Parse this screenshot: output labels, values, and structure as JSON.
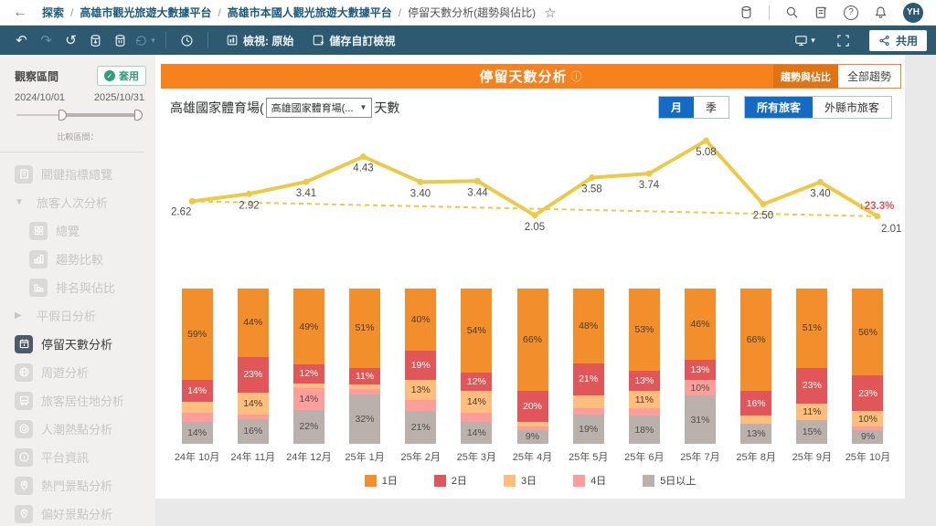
{
  "icons": {
    "back": "←",
    "star": "☆",
    "undo": "↶",
    "redo": "↷",
    "revert": "↺",
    "caret_down": "▾",
    "info": "ⓘ",
    "dropdown_caret": "▼",
    "group_expanded": "▼",
    "group_collapsed": "▶",
    "check": "✓"
  },
  "topbar": {
    "breadcrumb": [
      "探索",
      "高雄市觀光旅遊大數據平台",
      "高雄市本國人觀光旅遊大數據平台"
    ],
    "current_page": "停留天數分析(趨勢與佔比)",
    "avatar_initials": "YH"
  },
  "toolbar": {
    "view_label": "檢視: 原始",
    "save_view_label": "儲存自訂檢視",
    "share_label": "共用"
  },
  "sidebar": {
    "observe_title": "觀察區間",
    "apply_label": "套用",
    "date_start": "2024/10/01",
    "date_end": "2025/10/31",
    "compare_label": "比較區間：",
    "menu": [
      {
        "id": "key-indicator-overview",
        "label": "關鍵指標總覽",
        "icon": "doc",
        "state": "disabled",
        "indent": 0
      },
      {
        "id": "visitor-count-analysis",
        "label": "旅客人次分析",
        "arrow": "expanded",
        "state": "disabled",
        "indent": 0
      },
      {
        "id": "overview",
        "label": "總覽",
        "icon": "grid",
        "state": "disabled",
        "indent": 1
      },
      {
        "id": "trend-comparison",
        "label": "趨勢比較",
        "icon": "bars",
        "state": "disabled",
        "indent": 1
      },
      {
        "id": "ranking-share",
        "label": "排名與佔比",
        "icon": "rank",
        "state": "disabled",
        "indent": 1
      },
      {
        "id": "weekday-holiday-analysis",
        "label": "平假日分析",
        "arrow": "collapsed",
        "state": "disabled",
        "indent": 0
      },
      {
        "id": "stay-days-analysis",
        "label": "停留天數分析",
        "icon": "calendar",
        "state": "active",
        "indent": 0
      },
      {
        "id": "tour-analysis",
        "label": "周遊分析",
        "icon": "globe",
        "state": "disabled",
        "indent": 0
      },
      {
        "id": "residence-analysis",
        "label": "旅客居住地分析",
        "icon": "bus",
        "state": "disabled",
        "indent": 0
      },
      {
        "id": "crowd-hotspot-analysis",
        "label": "人潮熱點分析",
        "icon": "target",
        "state": "disabled",
        "indent": 0
      },
      {
        "id": "platform-info",
        "label": "平台資訊",
        "icon": "info",
        "state": "disabled",
        "indent": 0
      },
      {
        "id": "popular-spots-analysis",
        "label": "熱門景點分析",
        "icon": "pin",
        "state": "disabled",
        "indent": 0
      },
      {
        "id": "preferred-spots-analysis",
        "label": "偏好景點分析",
        "icon": "pin",
        "state": "disabled",
        "indent": 0
      }
    ]
  },
  "main": {
    "banner_title": "停留天數分析",
    "mode_tabs": {
      "active": "趨勢與佔比",
      "inactive": "全部趨勢"
    },
    "chart_title_prefix": "高雄國家體育場(",
    "chart_title_suffix": "天數",
    "venue_dropdown_value": "高雄國家體育場(...",
    "period_toggle": {
      "active": "月",
      "inactive": "季"
    },
    "visitor_toggle": {
      "active": "所有旅客",
      "inactive": "外縣市旅客"
    }
  },
  "chart_data": [
    {
      "type": "line",
      "name": "平均停留天數趨勢",
      "x": [
        "24年 10月",
        "24年 11月",
        "24年 12月",
        "25年 1月",
        "25年 2月",
        "25年 3月",
        "25年 4月",
        "25年 5月",
        "25年 6月",
        "25年 7月",
        "25年 8月",
        "25年 9月",
        "25年 10月"
      ],
      "values": [
        2.62,
        2.92,
        3.41,
        4.43,
        3.4,
        3.44,
        2.05,
        3.58,
        3.74,
        5.08,
        2.5,
        3.4,
        2.01
      ],
      "value_labels": [
        "2.62",
        "2.92",
        "3.41",
        "4.43",
        "3.40",
        "3.44",
        "2.05",
        "3.58",
        "3.74",
        "5.08",
        "2.50",
        "3.40",
        "2.01"
      ],
      "line_color": "#edc948",
      "label_color": "#4f4f4f",
      "trend_line": {
        "start": 2.62,
        "end": 2.01,
        "style": "dashed",
        "color": "#edc948"
      },
      "annotation": {
        "text": "↓23.3%",
        "color": "#e8505b",
        "position": "last-point"
      }
    },
    {
      "type": "bar",
      "stacked_percent": true,
      "label_threshold": 9,
      "unit": "%",
      "categories": [
        "24年 10月",
        "24年 11月",
        "24年 12月",
        "25年 1月",
        "25年 2月",
        "25年 3月",
        "25年 4月",
        "25年 5月",
        "25年 6月",
        "25年 7月",
        "25年 8月",
        "25年 9月",
        "25年 10月"
      ],
      "series": [
        {
          "name": "1日",
          "color": "#f28e2b",
          "label_color": "#4d3b2a",
          "values": [
            59,
            44,
            49,
            51,
            40,
            54,
            66,
            48,
            53,
            46,
            66,
            51,
            56
          ]
        },
        {
          "name": "2日",
          "color": "#e15759",
          "label_color": "#ffffff",
          "values": [
            14,
            23,
            12,
            11,
            19,
            12,
            20,
            21,
            13,
            13,
            16,
            23,
            23
          ]
        },
        {
          "name": "3日",
          "color": "#ffbe7d",
          "label_color": "#4d3b2a",
          "values": [
            7,
            14,
            3,
            3,
            13,
            14,
            3,
            8,
            11,
            0,
            5,
            11,
            10
          ]
        },
        {
          "name": "4日",
          "color": "#ff9d9a",
          "label_color": "#4f4f4f",
          "values": [
            6,
            3,
            14,
            3,
            7,
            6,
            2,
            4,
            5,
            10,
            0,
            0,
            2
          ]
        },
        {
          "name": "5日以上",
          "color": "#bab0ac",
          "label_color": "#4f4f4f",
          "values": [
            14,
            16,
            22,
            32,
            21,
            14,
            9,
            19,
            18,
            31,
            13,
            15,
            9
          ]
        }
      ]
    }
  ],
  "colors": {
    "banner_orange": "#f5821f",
    "toolbar_teal": "#2d5a70",
    "accent_blue": "#146bc5",
    "line_yellow": "#edc948",
    "annotation_red": "#e8505b",
    "apply_green": "#2e9e7b"
  }
}
